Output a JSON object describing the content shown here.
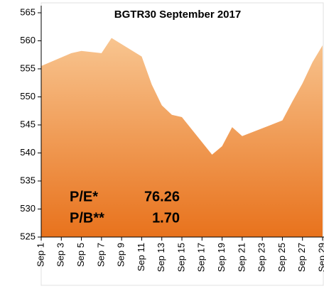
{
  "chart_data": {
    "type": "area",
    "title": "BGTR30 September 2017",
    "x": [
      1,
      4,
      5,
      7,
      8,
      11,
      12,
      13,
      14,
      15,
      18,
      19,
      20,
      21,
      25,
      26,
      27,
      28,
      29
    ],
    "values": [
      555.5,
      557.8,
      558.2,
      557.8,
      560.5,
      557.2,
      552.2,
      548.5,
      546.8,
      546.4,
      539.7,
      541.2,
      544.6,
      543.0,
      545.8,
      549.2,
      552.4,
      556.2,
      559.2
    ],
    "colors": [
      "#f8c590",
      "#e8721c"
    ],
    "xlim": [
      1,
      29
    ],
    "xticks": [
      {
        "value": 1,
        "label": "Sep 1"
      },
      {
        "value": 3,
        "label": "Sep 3"
      },
      {
        "value": 5,
        "label": "Sep 5"
      },
      {
        "value": 7,
        "label": "Sep 7"
      },
      {
        "value": 9,
        "label": "Sep 9"
      },
      {
        "value": 11,
        "label": "Sep 11"
      },
      {
        "value": 13,
        "label": "Sep 13"
      },
      {
        "value": 15,
        "label": "Sep 15"
      },
      {
        "value": 17,
        "label": "Sep 17"
      },
      {
        "value": 19,
        "label": "Sep 19"
      },
      {
        "value": 21,
        "label": "Sep 21"
      },
      {
        "value": 23,
        "label": "Sep 23"
      },
      {
        "value": 25,
        "label": "Sep 25"
      },
      {
        "value": 27,
        "label": "Sep 27"
      },
      {
        "value": 29,
        "label": "Sep 29"
      }
    ],
    "ylim": [
      525,
      565
    ],
    "yticks": [
      525,
      530,
      535,
      540,
      545,
      550,
      555,
      560,
      565
    ],
    "annotations": [
      {
        "label": "P/E*",
        "value": "76.26"
      },
      {
        "label": "P/B**",
        "value": "1.70"
      }
    ]
  }
}
